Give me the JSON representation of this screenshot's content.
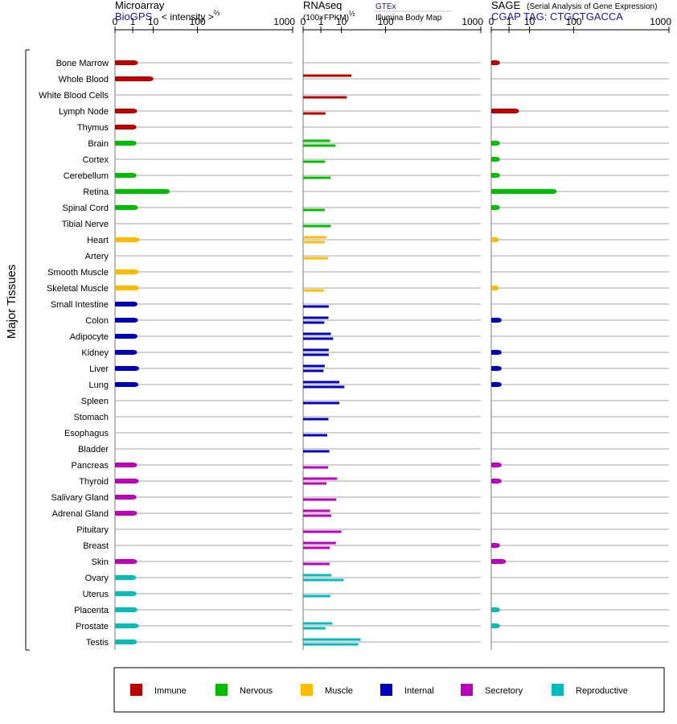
{
  "colors": {
    "Immune": "#bb0000",
    "Nervous": "#00bb00",
    "Muscle": "#ffbb00",
    "Internal": "#0000bb",
    "Secretory": "#bb00bb",
    "Reproductive": "#00bbbb",
    "link_blue": "#1a1a99",
    "row_line": "#888888",
    "axis": "#000000"
  },
  "left_label": "Major Tissues",
  "chart_data": {
    "type": "bar",
    "categories": [
      "Bone Marrow",
      "Whole Blood",
      "White Blood Cells",
      "Lymph Node",
      "Thymus",
      "Brain",
      "Cortex",
      "Cerebellum",
      "Retina",
      "Spinal Cord",
      "Tibial Nerve",
      "Heart",
      "Artery",
      "Smooth Muscle",
      "Skeletal Muscle",
      "Small Intestine",
      "Colon",
      "Adipocyte",
      "Kidney",
      "Liver",
      "Lung",
      "Spleen",
      "Stomach",
      "Esophagus",
      "Bladder",
      "Pancreas",
      "Thyroid",
      "Salivary Gland",
      "Adrenal Gland",
      "Pituitary",
      "Breast",
      "Skin",
      "Ovary",
      "Uterus",
      "Placenta",
      "Prostate",
      "Testis"
    ],
    "category_groups": [
      "Immune",
      "Immune",
      "Immune",
      "Immune",
      "Immune",
      "Nervous",
      "Nervous",
      "Nervous",
      "Nervous",
      "Nervous",
      "Nervous",
      "Muscle",
      "Muscle",
      "Muscle",
      "Muscle",
      "Internal",
      "Internal",
      "Internal",
      "Internal",
      "Internal",
      "Internal",
      "Internal",
      "Internal",
      "Internal",
      "Internal",
      "Secretory",
      "Secretory",
      "Secretory",
      "Secretory",
      "Secretory",
      "Secretory",
      "Secretory",
      "Reproductive",
      "Reproductive",
      "Reproductive",
      "Reproductive",
      "Reproductive"
    ],
    "ticks": [
      "0",
      "1",
      "10",
      "100",
      "1000"
    ],
    "panels": [
      {
        "key": "microarray",
        "title": "Microarray",
        "subtitle": "BioGPS",
        "scale_label": "< intensity >",
        "scale_exponent": "⅔",
        "xlim": [
          0,
          1000
        ],
        "series": [
          {
            "values": [
              1.6,
              8.5,
              null,
              1.4,
              1.3,
              1.3,
              null,
              1.3,
              26,
              1.6,
              null,
              2.0,
              null,
              1.8,
              1.9,
              1.5,
              1.6,
              1.5,
              1.4,
              1.9,
              1.7,
              null,
              null,
              null,
              null,
              1.4,
              1.8,
              1.3,
              1.4,
              null,
              null,
              1.4,
              1.2,
              1.3,
              1.5,
              1.8,
              1.4
            ]
          }
        ]
      },
      {
        "key": "rnaseq",
        "title": "RNAseq",
        "subtitle": "(100×FPKM)",
        "scale_exponent": "½",
        "xlim": [
          0,
          1000
        ],
        "series": [
          {
            "name": "GTEx",
            "values": [
              null,
              20,
              null,
              null,
              null,
              null,
              null,
              null,
              null,
              null,
              null,
              null,
              null,
              null,
              null,
              null,
              null,
              null,
              null,
              null,
              null,
              null,
              null,
              null,
              null,
              null,
              null,
              null,
              null,
              null,
              null,
              null,
              null,
              null,
              null,
              null,
              null
            ]
          },
          {
            "name": "Illumina Body Map",
            "values": [
              null,
              null,
              15,
              2.0,
              null,
              3.5,
              1.9,
              3.7,
              null,
              1.8,
              3.8,
              2.3,
              2.8,
              null,
              1.6,
              3.0,
              2.9,
              3.8,
              3.0,
              1.8,
              8.5,
              8.5,
              2.9,
              2.5,
              3.2,
              2.8,
              7.0,
              6.5,
              3.5,
              10,
              6.3,
              3.3,
              4.0,
              3.6,
              null,
              4.5,
              34
            ]
          },
          {
            "name": "Illumina Body Map (2)",
            "values": [
              null,
              null,
              null,
              null,
              null,
              6.0,
              null,
              null,
              null,
              null,
              null,
              1.8,
              null,
              null,
              null,
              null,
              1.7,
              4.8,
              3.0,
              1.5,
              12.5,
              null,
              null,
              null,
              null,
              null,
              2.3,
              null,
              4.0,
              null,
              3.4,
              null,
              12,
              null,
              null,
              2.0,
              30
            ]
          }
        ]
      },
      {
        "key": "sage",
        "title": "SAGE",
        "title_note": "(Serial Analysis of Gene Expression)",
        "subtitle": "CGAP TAG: CTGCTGACCA",
        "xlim": [
          0,
          1000
        ],
        "series": [
          {
            "values": [
              0.05,
              null,
              null,
              3.0,
              null,
              0.05,
              0.05,
              0.05,
              45,
              0.05,
              null,
              0.03,
              null,
              null,
              0.03,
              null,
              0.1,
              null,
              0.1,
              0.1,
              0.1,
              null,
              null,
              null,
              null,
              0.1,
              0.1,
              null,
              null,
              null,
              0.05,
              0.35,
              null,
              null,
              0.05,
              0.05,
              null
            ]
          }
        ]
      }
    ]
  },
  "legend": [
    {
      "label": "Immune",
      "color": "#bb0000"
    },
    {
      "label": "Nervous",
      "color": "#00bb00"
    },
    {
      "label": "Muscle",
      "color": "#ffbb00"
    },
    {
      "label": "Internal",
      "color": "#0000bb"
    },
    {
      "label": "Secretory",
      "color": "#bb00bb"
    },
    {
      "label": "Reproductive",
      "color": "#00bbbb"
    }
  ]
}
